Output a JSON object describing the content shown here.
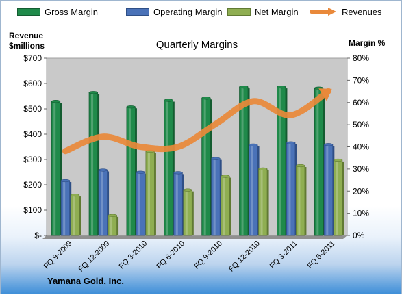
{
  "legend": {
    "gross": "Gross Margin",
    "operating": "Operating Margin",
    "net": "Net Margin",
    "revenues": "Revenues"
  },
  "axis": {
    "left_title_line1": "Revenue",
    "left_title_line2": "$millions",
    "right_title": "Margin %"
  },
  "company": "Yamana Gold, Inc.",
  "colors": {
    "gross": "#1f8a4a",
    "operating": "#4a72b8",
    "net": "#8fae52",
    "revenues": "#e9893a",
    "plot_bg": "#c9c9c9"
  },
  "chart_data": {
    "type": "bar",
    "title": "Quarterly Margins",
    "categories": [
      "FQ 9-2009",
      "FQ 12-2009",
      "FQ 3-2010",
      "FQ 6-2010",
      "FQ 9-2010",
      "FQ 12-2010",
      "FQ 3-2011",
      "FQ 6-2011"
    ],
    "series": [
      {
        "name": "Gross Margin",
        "axis": "right",
        "unit": "%",
        "values": [
          60.5,
          64.5,
          58,
          61,
          62,
          67,
          67,
          66.5
        ]
      },
      {
        "name": "Operating Margin",
        "axis": "right",
        "unit": "%",
        "values": [
          24.7,
          29.5,
          28.5,
          28.3,
          34.7,
          40.8,
          41.8,
          41
        ]
      },
      {
        "name": "Net Margin",
        "axis": "right",
        "unit": "%",
        "values": [
          18.2,
          9,
          38,
          20.5,
          26.7,
          30,
          31.5,
          34
        ]
      },
      {
        "name": "Revenues",
        "type": "line",
        "axis": "left",
        "unit": "$ millions",
        "values": [
          333,
          390,
          350,
          350,
          440,
          530,
          475,
          570
        ]
      }
    ],
    "left_axis": {
      "range": [
        0,
        700
      ],
      "ticks": [
        "$-",
        "$100",
        "$200",
        "$300",
        "$400",
        "$500",
        "$600",
        "$700"
      ]
    },
    "right_axis": {
      "range": [
        0,
        80
      ],
      "ticks": [
        "0%",
        "10%",
        "20%",
        "30%",
        "40%",
        "50%",
        "60%",
        "70%",
        "80%"
      ]
    },
    "grid": false,
    "legend_position": "top"
  }
}
